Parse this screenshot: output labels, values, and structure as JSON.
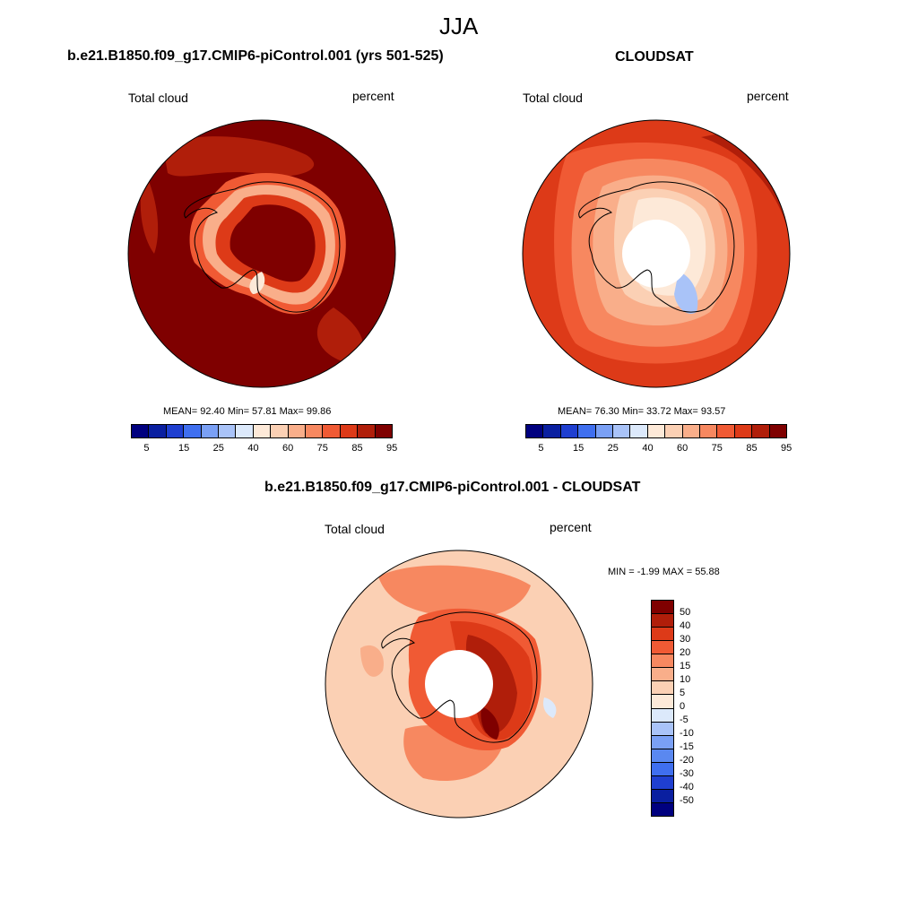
{
  "figure": {
    "title": "JJA"
  },
  "panels": {
    "model": {
      "title": "b.e21.B1850.f09_g17.CMIP6-piControl.001 (yrs 501-525)",
      "variable": "Total cloud",
      "units": "percent",
      "stats": "MEAN=  92.40  Min=  57.81  Max=  99.86"
    },
    "obs": {
      "title": "CLOUDSAT",
      "variable": "Total cloud",
      "units": "percent",
      "stats": "MEAN=  76.30  Min=  33.72  Max=  93.57"
    },
    "diff": {
      "title": "b.e21.B1850.f09_g17.CMIP6-piControl.001 - CLOUDSAT",
      "variable": "Total cloud",
      "units": "percent",
      "stats": "MIN =  -1.99 MAX =  55.88"
    }
  },
  "colorbar_abs": {
    "tick_labels": [
      "5",
      "15",
      "25",
      "40",
      "60",
      "75",
      "85",
      "95"
    ],
    "colors": [
      "#00007f",
      "#0a1fa0",
      "#1f3fd0",
      "#3f6fef",
      "#7aa0f5",
      "#a9c3f8",
      "#dce9fb",
      "#fde9d8",
      "#fbd0b4",
      "#f9ae8a",
      "#f78860",
      "#f05a34",
      "#dd3a18",
      "#b01e0a",
      "#7f0000"
    ]
  },
  "colorbar_diff": {
    "tick_labels": [
      "50",
      "40",
      "30",
      "20",
      "15",
      "10",
      "5",
      "0",
      "-5",
      "-10",
      "-15",
      "-20",
      "-30",
      "-40",
      "-50"
    ],
    "colors": [
      "#7f0000",
      "#b01e0a",
      "#dd3a18",
      "#f05a34",
      "#f78860",
      "#f9ae8a",
      "#fbd0b4",
      "#fde9d8",
      "#dce9fb",
      "#a9c3f8",
      "#7aa0f5",
      "#5a88f0",
      "#3f6fef",
      "#1f3fd0",
      "#0a1fa0",
      "#00007f"
    ]
  }
}
